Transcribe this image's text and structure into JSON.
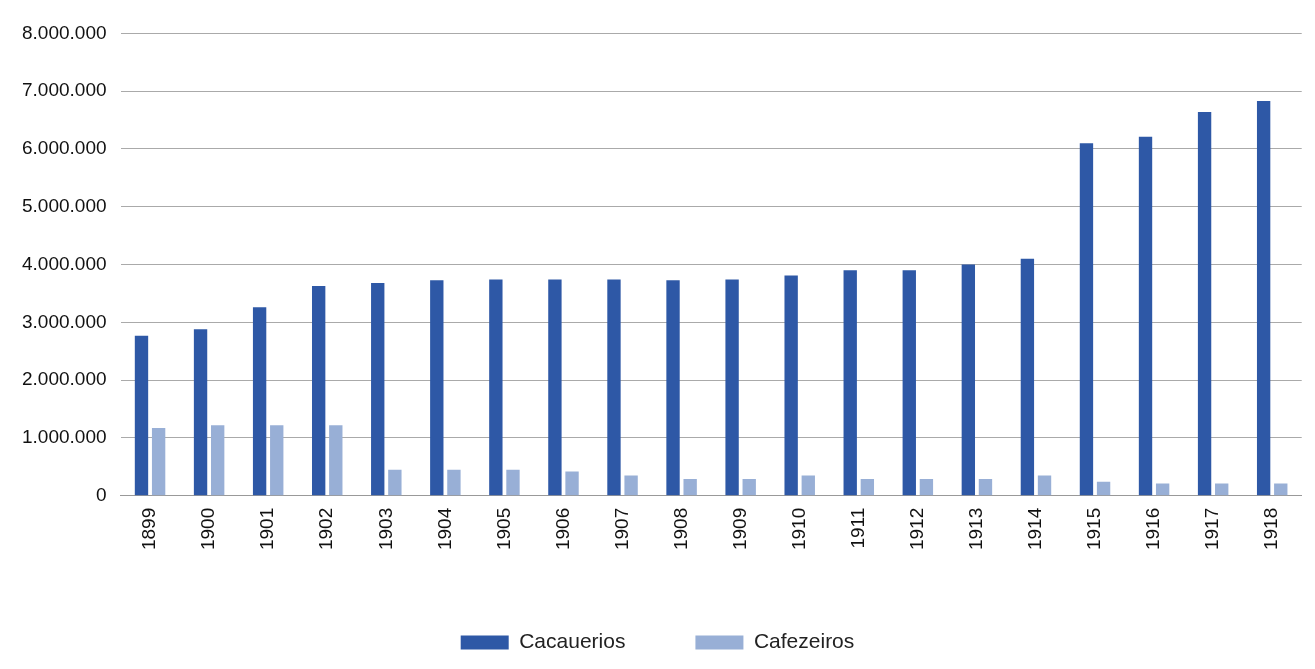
{
  "chart_data": {
    "type": "bar",
    "categories": [
      "1899",
      "1900",
      "1901",
      "1902",
      "1903",
      "1904",
      "1905",
      "1906",
      "1907",
      "1908",
      "1909",
      "1910",
      "1911",
      "1912",
      "1913",
      "1914",
      "1915",
      "1916",
      "1917",
      "1918"
    ],
    "series": [
      {
        "name": "Cacauerios",
        "color": "#2e58a6",
        "values": [
          2770000,
          2880000,
          3260000,
          3630000,
          3680000,
          3730000,
          3740000,
          3740000,
          3740000,
          3730000,
          3740000,
          3810000,
          3900000,
          3900000,
          4000000,
          4100000,
          6100000,
          6210000,
          6640000,
          6830000
        ]
      },
      {
        "name": "Cafezeiros",
        "color": "#98afd6",
        "values": [
          1170000,
          1220000,
          1220000,
          1220000,
          450000,
          450000,
          450000,
          420000,
          350000,
          290000,
          290000,
          350000,
          290000,
          290000,
          290000,
          350000,
          240000,
          210000,
          210000,
          210000
        ]
      }
    ],
    "ylim": [
      0,
      8000000
    ],
    "yticks": [
      {
        "value": 0,
        "label": "0"
      },
      {
        "value": 1000000,
        "label": "1.000.000"
      },
      {
        "value": 2000000,
        "label": "2.000.000"
      },
      {
        "value": 3000000,
        "label": "3.000.000"
      },
      {
        "value": 4000000,
        "label": "4.000.000"
      },
      {
        "value": 5000000,
        "label": "5.000.000"
      },
      {
        "value": 6000000,
        "label": "6.000.000"
      },
      {
        "value": 7000000,
        "label": "7.000.000"
      },
      {
        "value": 8000000,
        "label": "8.000.000"
      }
    ],
    "grid": "y",
    "legend": "bottom"
  }
}
